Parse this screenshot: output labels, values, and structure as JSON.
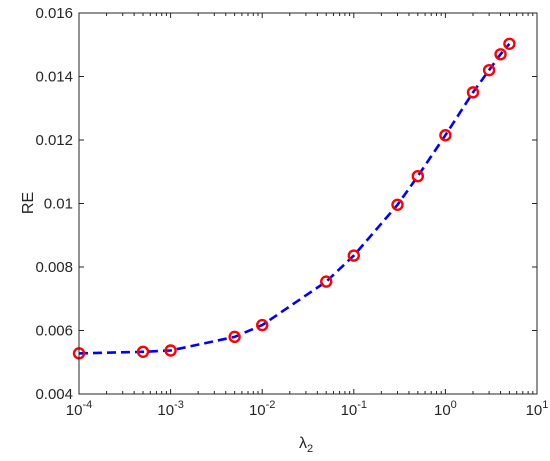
{
  "chart_data": {
    "type": "line",
    "xscale": "log",
    "xlim": [
      0.0001,
      10
    ],
    "ylim": [
      0.004,
      0.016
    ],
    "xlabel": "λ2",
    "ylabel": "RE",
    "grid": false,
    "x_ticks": [
      {
        "value": 0.0001,
        "base": "10",
        "exp": "-4"
      },
      {
        "value": 0.001,
        "base": "10",
        "exp": "-3"
      },
      {
        "value": 0.01,
        "base": "10",
        "exp": "-2"
      },
      {
        "value": 0.1,
        "base": "10",
        "exp": "-1"
      },
      {
        "value": 1,
        "base": "10",
        "exp": "0"
      },
      {
        "value": 10,
        "base": "10",
        "exp": "1"
      }
    ],
    "y_ticks": [
      {
        "value": 0.004,
        "label": "0.004"
      },
      {
        "value": 0.006,
        "label": "0.006"
      },
      {
        "value": 0.008,
        "label": "0.008"
      },
      {
        "value": 0.01,
        "label": "0.01"
      },
      {
        "value": 0.012,
        "label": "0.012"
      },
      {
        "value": 0.014,
        "label": "0.014"
      },
      {
        "value": 0.016,
        "label": "0.016"
      }
    ],
    "series": [
      {
        "line_color": "#0000ff",
        "line_style": "dashed",
        "marker": "circle",
        "marker_color": "#ff0000",
        "x": [
          0.0001,
          0.0005,
          0.001,
          0.005,
          0.01,
          0.05,
          0.1,
          0.3,
          0.5,
          1,
          2,
          3,
          4,
          5
        ],
        "y": [
          0.00528,
          0.00533,
          0.00537,
          0.0058,
          0.00617,
          0.00754,
          0.00836,
          0.00996,
          0.01086,
          0.01215,
          0.0135,
          0.0142,
          0.0147,
          0.01503
        ]
      }
    ]
  }
}
